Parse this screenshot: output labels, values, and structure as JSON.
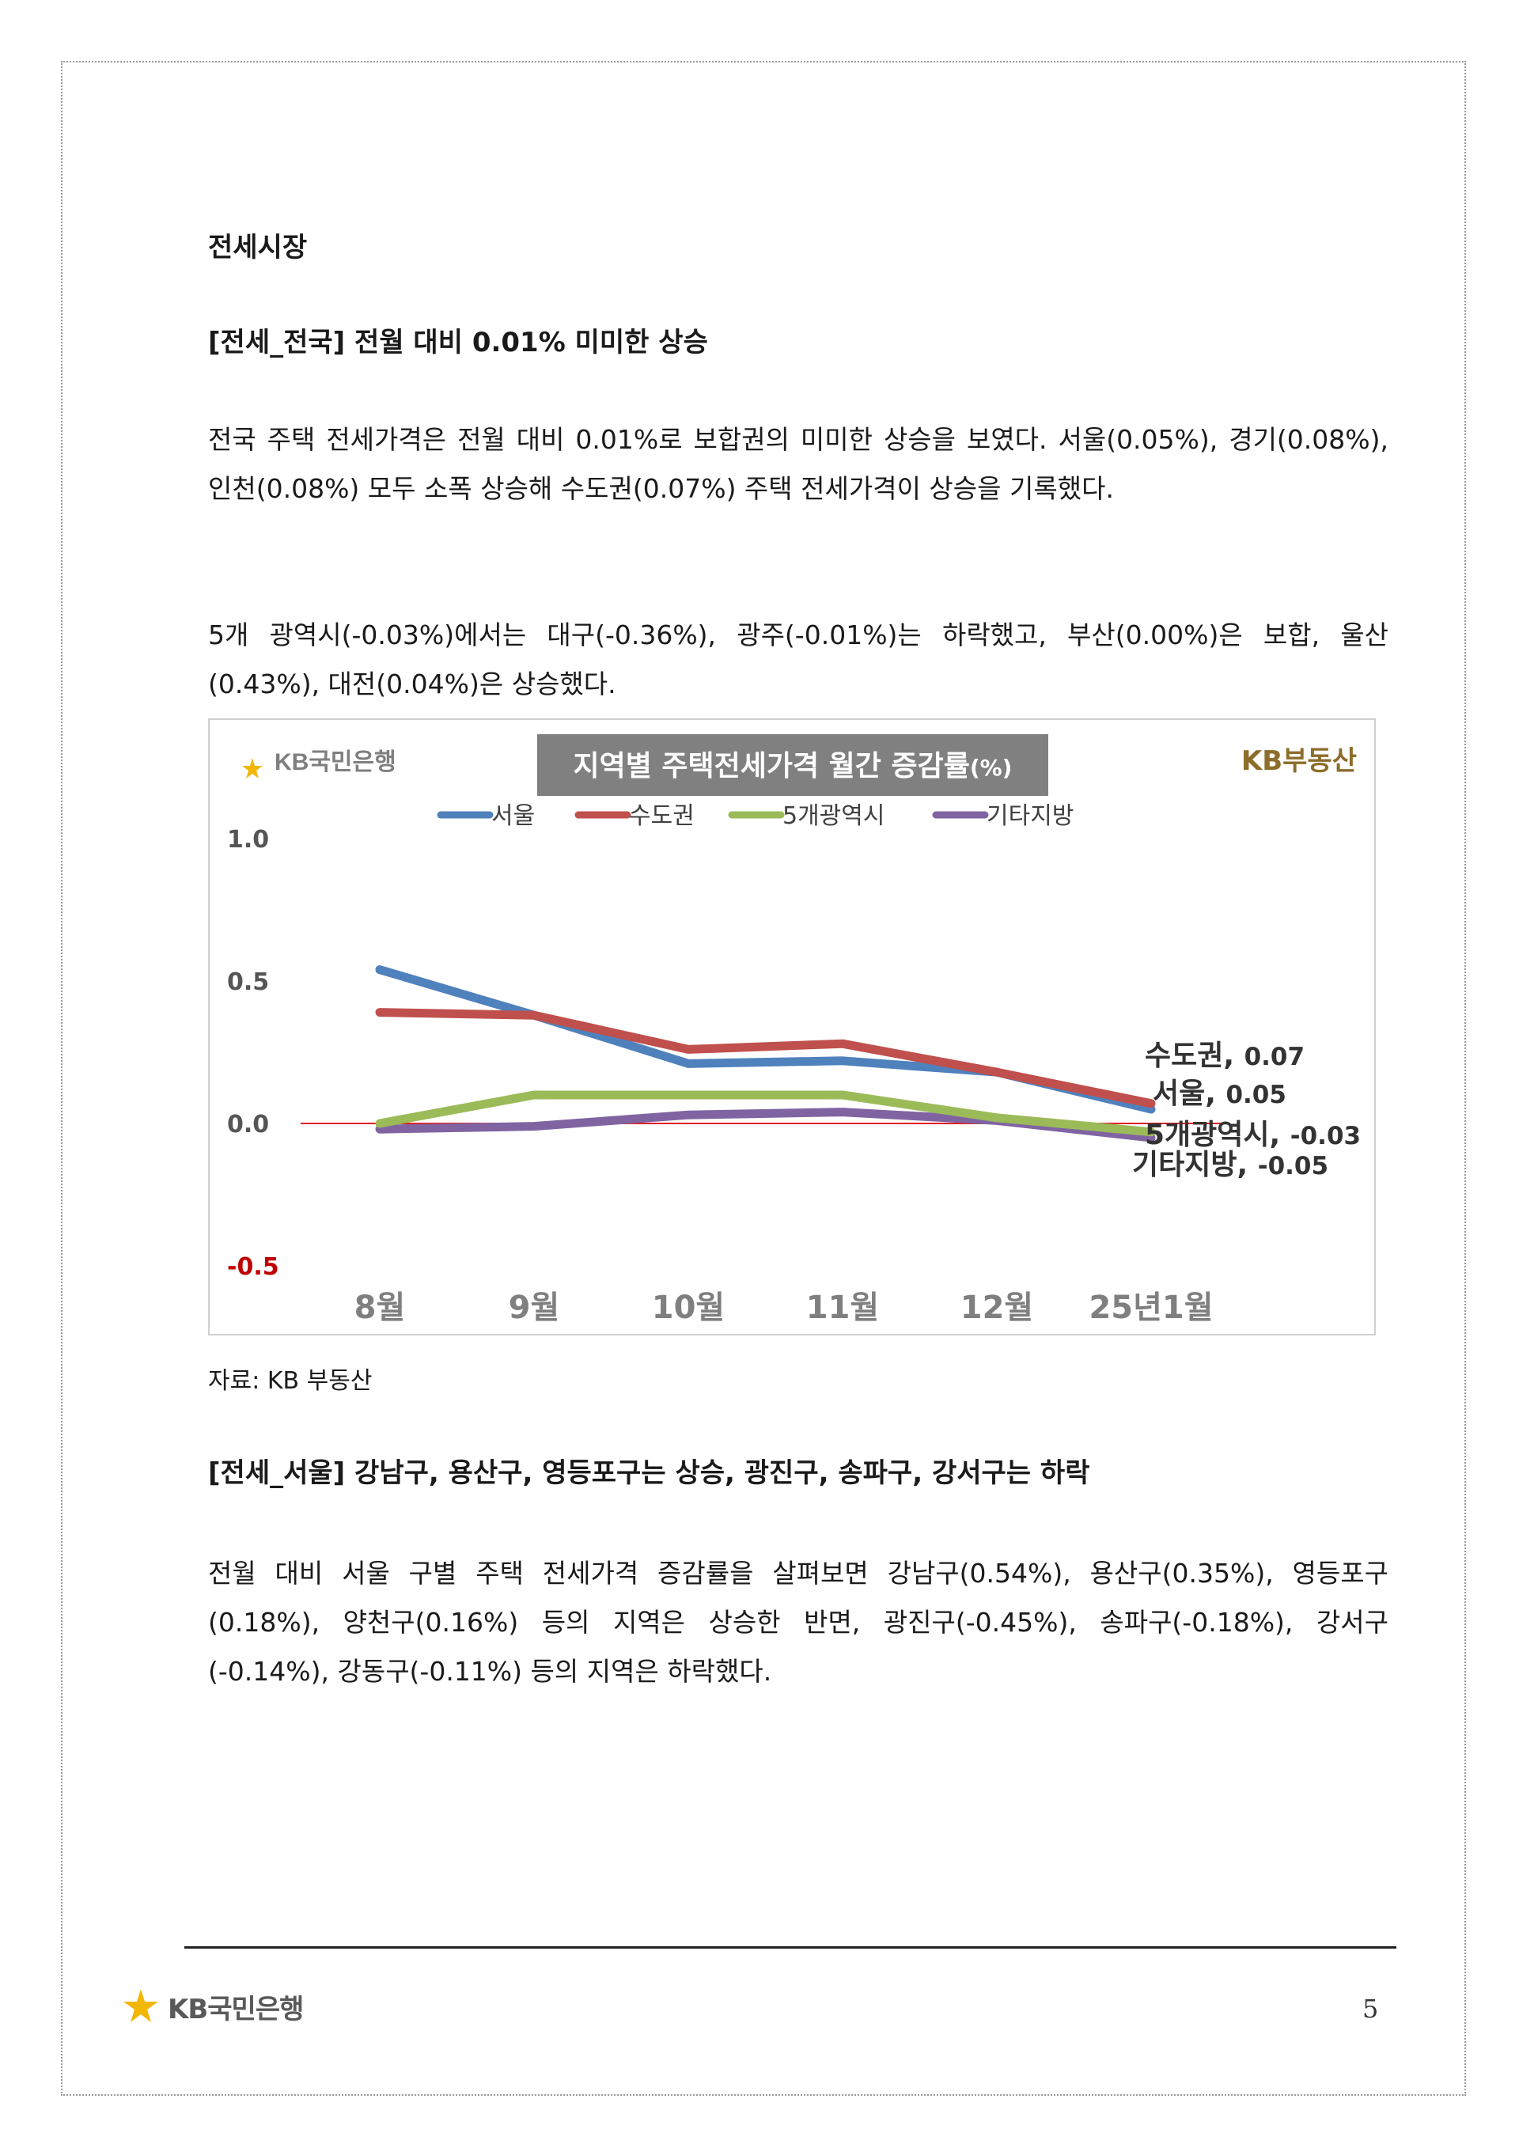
{
  "section_title": "전세시장",
  "heading1": "[전세_전국] 전월 대비 0.01% 미미한 상승",
  "paragraph1": "전국 주택 전세가격은 전월 대비 0.01%로 보합권의 미미한 상승을 보였다. 서울(0.05%), 경기(0.08%), 인천(0.08%) 모두 소폭 상승해 수도권(0.07%) 주택 전세가격이 상승을 기록했다.",
  "paragraph2": "5개 광역시(-0.03%)에서는 대구(-0.36%), 광주(-0.01%)는 하락했고, 부산(0.00%)은 보합, 울산(0.43%), 대전(0.04%)은 상승했다.",
  "chart_logo_left": "KB국민은행",
  "chart_logo_right": "KB부동산",
  "source_note": "자료: KB 부동산",
  "heading2": "[전세_서울] 강남구, 용산구, 영등포구는 상승, 광진구, 송파구, 강서구는 하락",
  "paragraph3": "전월 대비 서울 구별 주택 전세가격 증감률을 살펴보면 강남구(0.54%), 용산구(0.35%), 영등포구(0.18%), 양천구(0.16%) 등의 지역은 상승한 반면, 광진구(-0.45%), 송파구(-0.18%), 강서구(-0.14%), 강동구(-0.11%) 등의 지역은 하락했다.",
  "footer": {
    "logo_text": "KB국민은행",
    "page_number": "5"
  },
  "colors": {
    "seoul": "#4f81bd",
    "capital": "#c0504d",
    "metro": "#9bbb59",
    "other": "#8064a2",
    "kb_yellow": "#f2b705"
  },
  "chart_data": {
    "type": "line",
    "title": "지역별 주택전세가격 월간 증감률(%)",
    "categories": [
      "8월",
      "9월",
      "10월",
      "11월",
      "12월",
      "25년1월"
    ],
    "ylim": [
      -0.5,
      1.0
    ],
    "yticks": [
      "1.0",
      "0.5",
      "0.0",
      "-0.5"
    ],
    "legend_position": "top",
    "series": [
      {
        "name": "서울",
        "values": [
          0.54,
          0.38,
          0.21,
          0.22,
          0.18,
          0.05
        ],
        "end_label": "서울, 0.05"
      },
      {
        "name": "수도권",
        "values": [
          0.39,
          0.38,
          0.26,
          0.28,
          0.18,
          0.07
        ],
        "end_label": "수도권, 0.07"
      },
      {
        "name": "5개광역시",
        "values": [
          0.0,
          0.1,
          0.1,
          0.1,
          0.02,
          -0.03
        ],
        "end_label": "5개광역시, -0.03"
      },
      {
        "name": "기타지방",
        "values": [
          -0.02,
          -0.01,
          0.03,
          0.04,
          0.01,
          -0.05
        ],
        "end_label": "기타지방, -0.05"
      }
    ]
  }
}
